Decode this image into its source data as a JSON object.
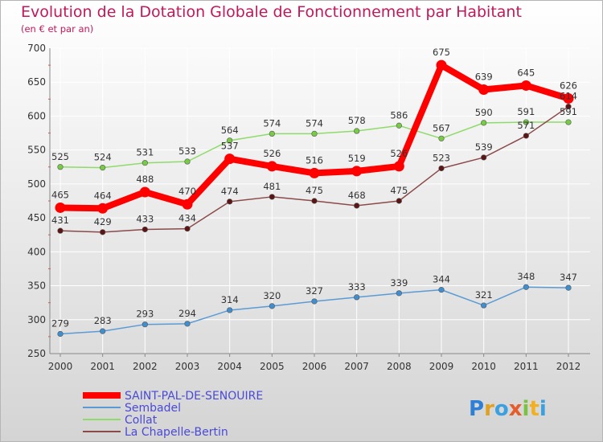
{
  "chart_data": {
    "type": "line",
    "title": "Evolution de la Dotation Globale de Fonctionnement par Habitant",
    "subtitle": "(en € et par an)",
    "x": [
      "2000",
      "2001",
      "2002",
      "2003",
      "2004",
      "2005",
      "2006",
      "2007",
      "2008",
      "2009",
      "2010",
      "2011",
      "2012"
    ],
    "ylim": [
      250,
      700
    ],
    "yticks": [
      250,
      300,
      350,
      400,
      450,
      500,
      550,
      600,
      650,
      700
    ],
    "grid": true,
    "legend_position": "bottom-left",
    "series": [
      {
        "name": "Sembadel",
        "color": "#5b9bd5",
        "dot": "#3f8fd0",
        "highlight": false,
        "values": [
          279,
          283,
          293,
          294,
          314,
          320,
          327,
          333,
          339,
          344,
          321,
          348,
          347
        ]
      },
      {
        "name": "Collat",
        "color": "#8fdb6a",
        "dot": "#77cc44",
        "highlight": false,
        "values": [
          525,
          524,
          531,
          533,
          564,
          574,
          574,
          578,
          586,
          567,
          590,
          591,
          591
        ]
      },
      {
        "name": "La Chapelle-Bertin",
        "color": "#8b4a4a",
        "dot": "#5c1414",
        "highlight": false,
        "values": [
          431,
          429,
          433,
          434,
          474,
          481,
          475,
          468,
          475,
          523,
          539,
          571,
          614
        ]
      },
      {
        "name": "SAINT-PAL-DE-SENOUIRE",
        "color": "#ff0000",
        "dot": "#ff0000",
        "highlight": true,
        "values": [
          465,
          464,
          488,
          470,
          537,
          526,
          516,
          519,
          526,
          675,
          639,
          645,
          626
        ]
      }
    ],
    "legend_order": [
      "SAINT-PAL-DE-SENOUIRE",
      "Sembadel",
      "Collat",
      "La Chapelle-Bertin"
    ]
  },
  "colors": {
    "title": "#c2185b",
    "legend_text": "#4a4ad8",
    "grid": "#ffffff",
    "background_top": "#ffffff",
    "background_bottom": "#d4d4d4"
  },
  "logo": {
    "text": "Proxiti"
  }
}
